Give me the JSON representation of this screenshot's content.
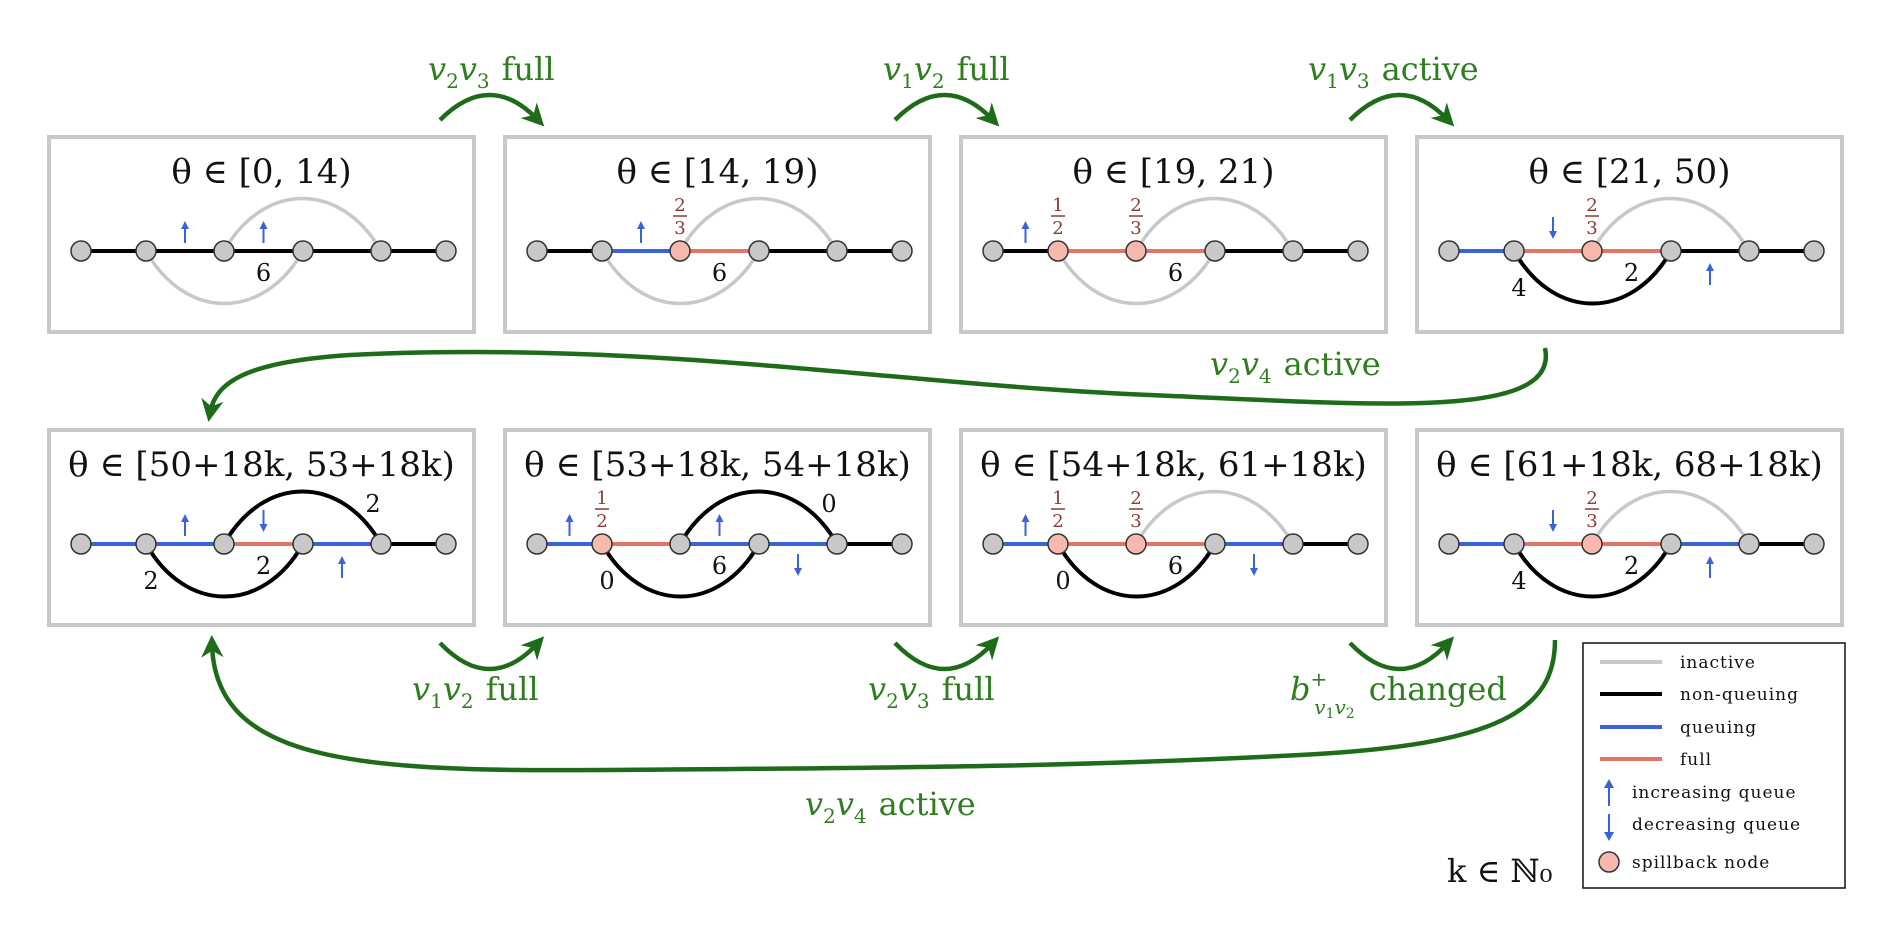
{
  "panels": [
    {
      "title": "θ ∈ [0, 14)",
      "edges": {
        "v0v1": "non-queuing",
        "v1v2": "non-queuing",
        "v2v3": "non-queuing",
        "v3v4": "non-queuing",
        "v4v5": "non-queuing",
        "v1v3": "inactive",
        "v2v4": "inactive"
      },
      "arrows": [
        {
          "edge": "v1v2",
          "dir": "up"
        },
        {
          "edge": "v2v3",
          "dir": "up"
        }
      ],
      "spillback": [],
      "fracs": [],
      "labels": [
        {
          "edge": "v2v3",
          "text": "6"
        }
      ]
    },
    {
      "title": "θ ∈ [14, 19)",
      "edges": {
        "v0v1": "non-queuing",
        "v1v2": "queuing",
        "v2v3": "full",
        "v3v4": "non-queuing",
        "v4v5": "non-queuing",
        "v1v3": "inactive",
        "v2v4": "inactive"
      },
      "arrows": [
        {
          "edge": "v1v2",
          "dir": "up"
        }
      ],
      "spillback": [
        "v2"
      ],
      "fracs": [
        {
          "node": "v2",
          "num": "2",
          "den": "3"
        }
      ],
      "labels": [
        {
          "edge": "v2v3",
          "text": "6"
        }
      ]
    },
    {
      "title": "θ ∈ [19, 21)",
      "edges": {
        "v0v1": "non-queuing",
        "v1v2": "full",
        "v2v3": "full",
        "v3v4": "non-queuing",
        "v4v5": "non-queuing",
        "v1v3": "inactive",
        "v2v4": "inactive"
      },
      "arrows": [
        {
          "edge": "v0v1",
          "dir": "up"
        }
      ],
      "spillback": [
        "v1",
        "v2"
      ],
      "fracs": [
        {
          "node": "v1",
          "num": "1",
          "den": "2"
        },
        {
          "node": "v2",
          "num": "2",
          "den": "3"
        }
      ],
      "labels": [
        {
          "edge": "v2v3",
          "text": "6"
        }
      ]
    },
    {
      "title": "θ ∈ [21, 50)",
      "edges": {
        "v0v1": "queuing",
        "v1v2": "full",
        "v2v3": "full",
        "v3v4": "non-queuing",
        "v4v5": "non-queuing",
        "v1v3": "non-queuing",
        "v2v4": "inactive"
      },
      "arrows": [
        {
          "edge": "v1v2",
          "dir": "down"
        },
        {
          "edge": "v3v4",
          "dir": "up"
        }
      ],
      "spillback": [
        "v2"
      ],
      "fracs": [
        {
          "node": "v2",
          "num": "2",
          "den": "3"
        }
      ],
      "labels": [
        {
          "edge": "v2v3",
          "text": "2"
        },
        {
          "edge": "v1v3",
          "text": "4"
        }
      ]
    },
    {
      "title": "θ ∈ [50+18k, 53+18k)",
      "edges": {
        "v0v1": "queuing",
        "v1v2": "queuing",
        "v2v3": "full",
        "v3v4": "queuing",
        "v4v5": "non-queuing",
        "v1v3": "non-queuing",
        "v2v4": "non-queuing"
      },
      "arrows": [
        {
          "edge": "v1v2",
          "dir": "up"
        },
        {
          "edge": "v2v3",
          "dir": "down"
        },
        {
          "edge": "v3v4",
          "dir": "up"
        }
      ],
      "spillback": [],
      "fracs": [],
      "labels": [
        {
          "edge": "v2v3",
          "text": "2"
        },
        {
          "edge": "v1v3",
          "text": "2"
        },
        {
          "edge": "v2v4",
          "text": "2"
        }
      ]
    },
    {
      "title": "θ ∈ [53+18k, 54+18k)",
      "edges": {
        "v0v1": "queuing",
        "v1v2": "full",
        "v2v3": "queuing",
        "v3v4": "queuing",
        "v4v5": "non-queuing",
        "v1v3": "non-queuing",
        "v2v4": "non-queuing"
      },
      "arrows": [
        {
          "edge": "v0v1",
          "dir": "up"
        },
        {
          "edge": "v2v3",
          "dir": "up"
        },
        {
          "edge": "v3v4",
          "dir": "down"
        }
      ],
      "spillback": [
        "v1"
      ],
      "fracs": [
        {
          "node": "v1",
          "num": "1",
          "den": "2"
        }
      ],
      "labels": [
        {
          "edge": "v2v3",
          "text": "6"
        },
        {
          "edge": "v1v3",
          "text": "0"
        },
        {
          "edge": "v2v4",
          "text": "0"
        }
      ]
    },
    {
      "title": "θ ∈ [54+18k, 61+18k)",
      "edges": {
        "v0v1": "queuing",
        "v1v2": "full",
        "v2v3": "full",
        "v3v4": "queuing",
        "v4v5": "non-queuing",
        "v1v3": "non-queuing",
        "v2v4": "inactive"
      },
      "arrows": [
        {
          "edge": "v0v1",
          "dir": "up"
        },
        {
          "edge": "v3v4",
          "dir": "down"
        }
      ],
      "spillback": [
        "v1",
        "v2"
      ],
      "fracs": [
        {
          "node": "v1",
          "num": "1",
          "den": "2"
        },
        {
          "node": "v2",
          "num": "2",
          "den": "3"
        }
      ],
      "labels": [
        {
          "edge": "v2v3",
          "text": "6"
        },
        {
          "edge": "v1v3",
          "text": "0"
        }
      ]
    },
    {
      "title": "θ ∈ [61+18k, 68+18k)",
      "edges": {
        "v0v1": "queuing",
        "v1v2": "full",
        "v2v3": "full",
        "v3v4": "queuing",
        "v4v5": "non-queuing",
        "v1v3": "non-queuing",
        "v2v4": "inactive"
      },
      "arrows": [
        {
          "edge": "v1v2",
          "dir": "down"
        },
        {
          "edge": "v3v4",
          "dir": "up"
        }
      ],
      "spillback": [
        "v2"
      ],
      "fracs": [
        {
          "node": "v2",
          "num": "2",
          "den": "3"
        }
      ],
      "labels": [
        {
          "edge": "v2v3",
          "text": "2"
        },
        {
          "edge": "v1v3",
          "text": "4"
        }
      ]
    }
  ],
  "transitions": {
    "t1": {
      "main": "v",
      "sub1": "2",
      "mid": "v",
      "sub2": "3",
      "word": "full"
    },
    "t2": {
      "main": "v",
      "sub1": "1",
      "mid": "v",
      "sub2": "2",
      "word": "full"
    },
    "t3": {
      "main": "v",
      "sub1": "1",
      "mid": "v",
      "sub2": "3",
      "word": "active"
    },
    "t4": {
      "main": "v",
      "sub1": "2",
      "mid": "v",
      "sub2": "4",
      "word": "active"
    },
    "t5": {
      "main": "v",
      "sub1": "1",
      "mid": "v",
      "sub2": "2",
      "word": "full"
    },
    "t6": {
      "main": "v",
      "sub1": "2",
      "mid": "v",
      "sub2": "3",
      "word": "full"
    },
    "t7": {
      "main": "b",
      "sup": "+",
      "sub": "v",
      "sub1": "1",
      "mid": "v",
      "sub2": "2",
      "word": "changed"
    },
    "t8": {
      "main": "v",
      "sub1": "2",
      "mid": "v",
      "sub2": "4",
      "word": "active"
    }
  },
  "legend": {
    "inactive": "inactive",
    "non_queuing": "non-queuing",
    "queuing": "queuing",
    "full": "full",
    "increasing": "increasing queue",
    "decreasing": "decreasing queue",
    "spillback": "spillback node"
  },
  "k_domain": "k ∈ ℕ₀",
  "colors": {
    "inactive": "#c8c8c8",
    "non-queuing": "#000000",
    "queuing": "#3b63d8",
    "full": "#e57366",
    "transition": "#1e6b1a",
    "spillback_fill": "#f7b8ad",
    "node_fill": "#c8c8c8",
    "frame": "#c8c8c8"
  }
}
